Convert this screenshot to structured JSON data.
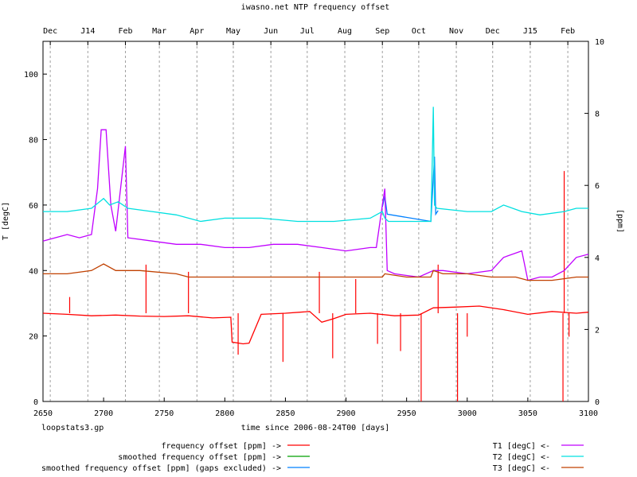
{
  "chart_data": {
    "type": "line",
    "title": "iwasno.net NTP frequency offset",
    "xlabel": "time since 2006-08-24T00 [days]",
    "ylabel_left": "T [degC]",
    "ylabel_right": "[ppm]",
    "footer_note": "loopstats3.gp",
    "xlim": [
      2650,
      3100
    ],
    "ylim_left": [
      0,
      110
    ],
    "ylim_right": [
      0,
      10
    ],
    "grid": "vertical dashed lines at month boundaries",
    "legend_position": "bottom",
    "x_ticks": [
      2650,
      2700,
      2750,
      2800,
      2850,
      2900,
      2950,
      3000,
      3050,
      3100
    ],
    "y_left_ticks": [
      0,
      20,
      40,
      60,
      80,
      100
    ],
    "y_right_ticks": [
      0,
      2,
      4,
      6,
      8,
      10
    ],
    "top_month_ticks": [
      {
        "label": "Dec",
        "x": 2656
      },
      {
        "label": "J14",
        "x": 2687
      },
      {
        "label": "Feb",
        "x": 2718
      },
      {
        "label": "Mar",
        "x": 2746
      },
      {
        "label": "Apr",
        "x": 2777
      },
      {
        "label": "May",
        "x": 2807
      },
      {
        "label": "Jun",
        "x": 2838
      },
      {
        "label": "Jul",
        "x": 2868
      },
      {
        "label": "Aug",
        "x": 2899
      },
      {
        "label": "Sep",
        "x": 2930
      },
      {
        "label": "Oct",
        "x": 2960
      },
      {
        "label": "Nov",
        "x": 2991
      },
      {
        "label": "Dec",
        "x": 3021
      },
      {
        "label": "J15",
        "x": 3052
      },
      {
        "label": "Feb",
        "x": 3083
      }
    ],
    "legend_left": [
      {
        "name": "frequency offset [ppm] ->",
        "color": "#ff0000"
      },
      {
        "name": "smoothed frequency offset [ppm] ->",
        "color": "#00a000"
      },
      {
        "name": "smoothed frequency offset [ppm] (gaps excluded) ->",
        "color": "#0080ff"
      }
    ],
    "legend_right": [
      {
        "name": "T1 [degC] <-",
        "color": "#c000ff"
      },
      {
        "name": "T2 [degC] <-",
        "color": "#00e0e0"
      },
      {
        "name": "T3 [degC] <-",
        "color": "#c04000"
      }
    ],
    "series": [
      {
        "name": "frequency offset [ppm] ->",
        "axis": "right",
        "color": "#ff0000",
        "x": [
          2650,
          2670,
          2690,
          2710,
          2730,
          2750,
          2770,
          2790,
          2805,
          2806,
          2815,
          2820,
          2830,
          2850,
          2870,
          2880,
          2890,
          2900,
          2920,
          2940,
          2960,
          2972,
          2990,
          3010,
          3030,
          3050,
          3070,
          3090,
          3100
        ],
        "y": [
          2.45,
          2.42,
          2.38,
          2.4,
          2.37,
          2.36,
          2.38,
          2.32,
          2.34,
          1.65,
          1.6,
          1.62,
          2.42,
          2.45,
          2.5,
          2.2,
          2.3,
          2.42,
          2.45,
          2.38,
          2.4,
          2.6,
          2.62,
          2.65,
          2.55,
          2.42,
          2.5,
          2.45,
          2.48
        ],
        "spikes": [
          {
            "x": 2672,
            "y": 2.9
          },
          {
            "x": 2735,
            "y": 3.8
          },
          {
            "x": 2770,
            "y": 3.6
          },
          {
            "x": 2811,
            "y": 1.3
          },
          {
            "x": 2848,
            "y": 1.1
          },
          {
            "x": 2878,
            "y": 3.6
          },
          {
            "x": 2889,
            "y": 1.2
          },
          {
            "x": 2908,
            "y": 3.4
          },
          {
            "x": 2926,
            "y": 1.6
          },
          {
            "x": 2945,
            "y": 1.4
          },
          {
            "x": 2962,
            "y": 0.0
          },
          {
            "x": 2976,
            "y": 3.8
          },
          {
            "x": 2992,
            "y": 0.0
          },
          {
            "x": 3000,
            "y": 1.8
          },
          {
            "x": 3080,
            "y": 6.4
          },
          {
            "x": 3079,
            "y": 0.0
          },
          {
            "x": 3084,
            "y": 1.8
          }
        ]
      },
      {
        "name": "smoothed frequency offset [ppm] ->",
        "axis": "right",
        "color": "#00a000",
        "x": [],
        "y": []
      },
      {
        "name": "smoothed frequency offset [ppm] (gaps excluded) ->",
        "axis": "right",
        "color": "#0080ff",
        "x": [
          2930,
          2932,
          2934,
          2970,
          2973,
          2974,
          2976
        ],
        "y": [
          5.4,
          5.7,
          5.2,
          5.0,
          6.8,
          5.2,
          5.3
        ]
      },
      {
        "name": "T1 [degC] <-",
        "axis": "left",
        "color": "#c000ff",
        "x": [
          2650,
          2660,
          2670,
          2680,
          2690,
          2695,
          2698,
          2702,
          2706,
          2710,
          2718,
          2720,
          2740,
          2760,
          2780,
          2800,
          2820,
          2840,
          2860,
          2880,
          2900,
          2920,
          2925,
          2930,
          2932,
          2934,
          2940,
          2960,
          2972,
          2980,
          3000,
          3020,
          3030,
          3045,
          3050,
          3060,
          3070,
          3080,
          3090,
          3100
        ],
        "y": [
          49,
          50,
          51,
          50,
          51,
          65,
          83,
          83,
          60,
          52,
          78,
          50,
          49,
          48,
          48,
          47,
          47,
          48,
          48,
          47,
          46,
          47,
          47,
          60,
          65,
          40,
          39,
          38,
          40,
          40,
          39,
          40,
          44,
          46,
          37,
          38,
          38,
          40,
          44,
          45
        ]
      },
      {
        "name": "T2 [degC] <-",
        "axis": "left",
        "color": "#00e0e0",
        "x": [
          2650,
          2670,
          2690,
          2700,
          2705,
          2712,
          2720,
          2740,
          2760,
          2780,
          2800,
          2830,
          2860,
          2890,
          2920,
          2930,
          2932,
          2935,
          2950,
          2970,
          2971,
          2972,
          2973,
          2975,
          3000,
          3020,
          3030,
          3045,
          3060,
          3080,
          3090,
          3100
        ],
        "y": [
          58,
          58,
          59,
          62,
          60,
          61,
          59,
          58,
          57,
          55,
          56,
          56,
          55,
          55,
          56,
          58,
          56,
          55,
          55,
          55,
          70,
          90,
          60,
          59,
          58,
          58,
          60,
          58,
          57,
          58,
          59,
          59
        ]
      },
      {
        "name": "T3 [degC] <-",
        "axis": "left",
        "color": "#c04000",
        "x": [
          2650,
          2670,
          2690,
          2700,
          2710,
          2730,
          2760,
          2770,
          2780,
          2800,
          2830,
          2860,
          2900,
          2930,
          2932,
          2950,
          2970,
          2972,
          2980,
          3000,
          3020,
          3040,
          3050,
          3070,
          3090,
          3100
        ],
        "y": [
          39,
          39,
          40,
          42,
          40,
          40,
          39,
          38,
          38,
          38,
          38,
          38,
          38,
          38,
          39,
          38,
          38,
          40,
          39,
          39,
          38,
          38,
          37,
          37,
          38,
          38
        ]
      }
    ]
  }
}
